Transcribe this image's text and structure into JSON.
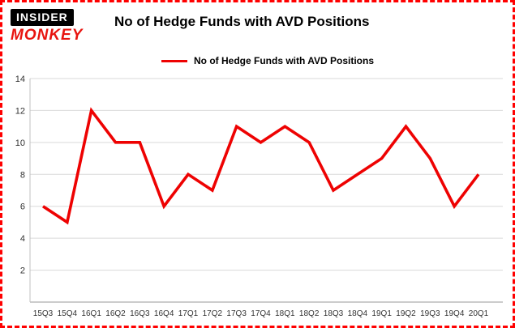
{
  "header": {
    "logo_top": "INSIDER",
    "logo_bottom": "MONKEY",
    "title": "No of Hedge Funds with AVD Positions"
  },
  "legend": {
    "label": "No of Hedge Funds with AVD Positions"
  },
  "colors": {
    "border_red": "#ff0000",
    "logo_red": "#e8140f",
    "line_red": "#ee0202",
    "gridline_gray": "#d9d9d9",
    "axis_gray": "#9a9a9a",
    "text_black": "#000000"
  },
  "chart_data": {
    "type": "line",
    "title": "No of Hedge Funds with AVD Positions",
    "categories": [
      "15Q3",
      "15Q4",
      "16Q1",
      "16Q2",
      "16Q3",
      "16Q4",
      "17Q1",
      "17Q2",
      "17Q3",
      "17Q4",
      "18Q1",
      "18Q2",
      "18Q3",
      "18Q4",
      "19Q1",
      "19Q2",
      "19Q3",
      "19Q4",
      "20Q1"
    ],
    "series": [
      {
        "name": "No of Hedge Funds with AVD Positions",
        "color": "#ee0202",
        "values": [
          6,
          5,
          12,
          10,
          10,
          6,
          8,
          7,
          11,
          10,
          11,
          10,
          7,
          8,
          9,
          11,
          9,
          6,
          8
        ]
      }
    ],
    "xlabel": "",
    "ylabel": "",
    "ylim": [
      0,
      14
    ],
    "yticks": [
      2,
      4,
      6,
      8,
      10,
      12,
      14
    ],
    "grid": true,
    "legend_position": "top-left"
  }
}
